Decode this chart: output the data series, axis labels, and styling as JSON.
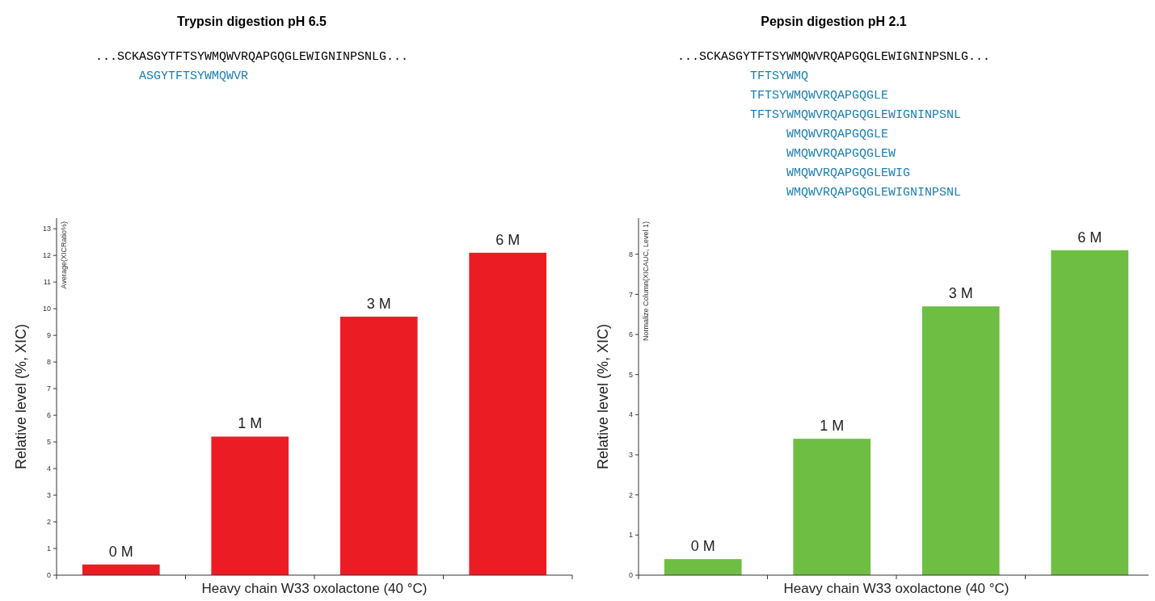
{
  "chart_data": [
    {
      "type": "bar",
      "title": "Trypsin digestion pH 6.5",
      "xlabel": "Heavy chain W33 oxolactone (40 °C)",
      "ylabel": "Relative level (%, XIC)",
      "categories": [
        "0 M",
        "1 M",
        "3 M",
        "6 M"
      ],
      "values": [
        0.4,
        5.2,
        9.7,
        12.1
      ],
      "color": "#ec1c24",
      "ylim": [
        0,
        13.4
      ],
      "yticks": [
        0,
        1,
        2,
        3,
        4,
        5,
        6,
        7,
        8,
        9,
        10,
        11,
        12,
        13
      ],
      "annotations": [
        "Average(XICRatio%)",
        "...SCKASGYTFTSYWMQWVRQAPGQGLEWIGNINPSNLG...",
        "ASGYTFTSYWMQWVR"
      ]
    },
    {
      "type": "bar",
      "title": "Pepsin digestion pH 2.1",
      "xlabel": "Heavy chain W33 oxolactone (40 °C)",
      "ylabel": "Relative level (%, XIC)",
      "categories": [
        "0 M",
        "1 M",
        "3 M",
        "6 M"
      ],
      "values": [
        0.4,
        3.4,
        6.7,
        8.1
      ],
      "color": "#6fbe44",
      "ylim": [
        0,
        8.9
      ],
      "yticks": [
        0,
        1,
        2,
        3,
        4,
        5,
        6,
        7,
        8
      ],
      "annotations": [
        "Normalize Column(XICAUC, Level 1)",
        "...SCKASGYTFTSYWMQWVRQAPGQGLEWIGNINPSNLG...",
        "TFTSYWMQ",
        "TFTSYWMQWVRQAPGQGLE",
        "TFTSYWMQWVRQAPGQGLEWIGNINPSNL",
        "WMQWVRQAPGQGLE",
        "WMQWVRQAPGQGLEW",
        "WMQWVRQAPGQGLEWIG",
        "WMQWVRQAPGQGLEWIGNINPSNL"
      ]
    }
  ]
}
